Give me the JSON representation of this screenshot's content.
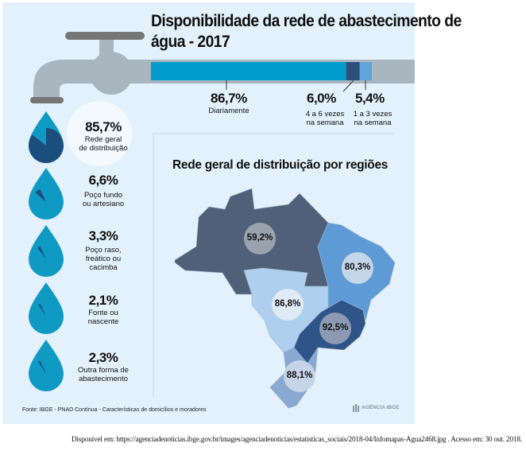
{
  "title": "Disponibilidade da rede de abastecimento de água - 2017",
  "colors": {
    "background": "#e2f1fb",
    "faucet": "#a9b6bf",
    "handle": "#767676",
    "bar_daily": "#009ccc",
    "bar_4to6": "#2e4f7a",
    "bar_1to3": "#62a3dc",
    "drop": "#0f9ac4",
    "drop_wedge": "#1b4d7d",
    "north": "#4f6078",
    "northeast": "#5e9bd6",
    "center_west": "#afcfee",
    "southeast": "#2e5488",
    "south": "#88a9d2"
  },
  "chart_data": [
    {
      "type": "bar",
      "title": "Disponibilidade da rede de abastecimento de água - 2017",
      "stacked": true,
      "series": [
        {
          "name": "Diariamente",
          "value": 86.7,
          "label": "86,7%"
        },
        {
          "name": "4 a 6 vezes na semana",
          "value": 6.0,
          "label": "6,0%"
        },
        {
          "name": "1 a 3 vezes na semana",
          "value": 5.4,
          "label": "5,4%"
        }
      ]
    },
    {
      "type": "pie",
      "icon": "water-drop",
      "items": [
        {
          "label": "Rede geral de distribuição",
          "value": 85.7,
          "text": "85,7%"
        },
        {
          "label": "Poço fundo ou artesiano",
          "value": 6.6,
          "text": "6,6%"
        },
        {
          "label": "Poço raso, freático ou cacimba",
          "value": 3.3,
          "text": "3,3%"
        },
        {
          "label": "Fonte ou nascente",
          "value": 2.1,
          "text": "2,1%"
        },
        {
          "label": "Outra forma de abastecimento",
          "value": 2.3,
          "text": "2,3%"
        }
      ]
    },
    {
      "type": "map",
      "title": "Rede geral de distribuição por regiões",
      "regions": [
        {
          "region": "Norte",
          "value": 59.2,
          "text": "59,2%"
        },
        {
          "region": "Nordeste",
          "value": 80.3,
          "text": "80,3%"
        },
        {
          "region": "Centro-Oeste",
          "value": 86.8,
          "text": "86,8%"
        },
        {
          "region": "Sudeste",
          "value": 92.5,
          "text": "92,5%"
        },
        {
          "region": "Sul",
          "value": 88.1,
          "text": "88,1%"
        }
      ]
    }
  ],
  "labels": {
    "bar": [
      {
        "value": "86,7%",
        "desc": "Diariamente"
      },
      {
        "value": "6,0%",
        "desc": "4 a 6 vezes\nna semana"
      },
      {
        "value": "5,4%",
        "desc": "1 a 3 vezes\nna semana"
      }
    ],
    "drops": [
      {
        "value": "85,7%",
        "desc": "Rede geral\nde distribuição"
      },
      {
        "value": "6,6%",
        "desc": "Poço fundo\nou artesiano"
      },
      {
        "value": "3,3%",
        "desc": "Poço raso,\nfreático ou\ncacimba"
      },
      {
        "value": "2,1%",
        "desc": "Fonte ou\nnascente"
      },
      {
        "value": "2,3%",
        "desc": "Outra forma de\nabastecimento"
      }
    ],
    "map_title": "Rede geral de distribuição por regiões"
  },
  "source": "Fonte: IBGE - PNAD Contínua - Características de domicílios e moradores",
  "logo": "AGÊNCIA IBGE",
  "citation": "Disponível em: https://agenciadenoticias.ibge.gov.br/images/agenciadenoticias/estatisticas_sociais/2018-04/Infomapas-Agua2468.jpg . Acesso em: 30 out. 2018."
}
